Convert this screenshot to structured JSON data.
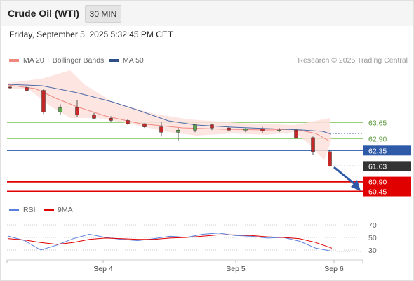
{
  "header": {
    "title": "Crude Oil (WTI)",
    "timeframe": "30 MIN",
    "datetime": "Friday, September 5, 2025 5:32:45 PM CET"
  },
  "legend": {
    "ma20_label": "MA 20 + Bollinger Bands",
    "ma50_label": "MA 50",
    "credit": "Research © 2025 Trading Central",
    "rsi_label": "RSI",
    "ma9_label": "9MA"
  },
  "colors": {
    "bollinger_fill": "#fde0dd",
    "ma20": "#f08880",
    "ma50": "#4a6aa8",
    "resistance": "#9bd07a",
    "pivot": "#2e5aa8",
    "support": "#e00000",
    "price_tag": "#333333",
    "rsi": "#5b7fe0",
    "rsi_ma": "#e00000"
  },
  "chart_data": [
    {
      "type": "candlestick",
      "title": "Crude Oil (WTI)",
      "x_ticks": [
        "Sep 4",
        "Sep 5",
        "Sep 6"
      ],
      "ylim": [
        60.0,
        64.3
      ],
      "levels": [
        {
          "label": "63.65",
          "value": 63.65,
          "kind": "resistance"
        },
        {
          "label": "62.90",
          "value": 62.9,
          "kind": "resistance"
        },
        {
          "label": "62.35",
          "value": 62.35,
          "kind": "pivot"
        },
        {
          "label": "61.63",
          "value": 61.63,
          "kind": "last"
        },
        {
          "label": "60.90",
          "value": 60.9,
          "kind": "support"
        },
        {
          "label": "60.45",
          "value": 60.45,
          "kind": "support"
        }
      ],
      "series": [
        {
          "name": "MA 20 + Bollinger Bands"
        },
        {
          "name": "MA 50"
        }
      ],
      "ohlc_sampled": [
        {
          "x": "Sep 3 20:00",
          "o": 65.3,
          "h": 65.35,
          "l": 65.2,
          "c": 65.28
        },
        {
          "x": "Sep 3 22:00",
          "o": 65.28,
          "h": 65.32,
          "l": 65.1,
          "c": 65.15
        },
        {
          "x": "Sep 4 00:00",
          "o": 65.15,
          "h": 65.2,
          "l": 64.05,
          "c": 64.15
        },
        {
          "x": "Sep 4 02:00",
          "o": 64.15,
          "h": 64.5,
          "l": 64.0,
          "c": 64.35
        },
        {
          "x": "Sep 4 04:00",
          "o": 64.35,
          "h": 64.7,
          "l": 63.9,
          "c": 64.0
        },
        {
          "x": "Sep 4 06:00",
          "o": 64.0,
          "h": 64.1,
          "l": 63.8,
          "c": 63.85
        },
        {
          "x": "Sep 4 08:00",
          "o": 63.85,
          "h": 63.95,
          "l": 63.7,
          "c": 63.75
        },
        {
          "x": "Sep 4 12:00",
          "o": 63.75,
          "h": 63.8,
          "l": 63.55,
          "c": 63.6
        },
        {
          "x": "Sep 4 16:00",
          "o": 63.6,
          "h": 63.62,
          "l": 63.4,
          "c": 63.45
        },
        {
          "x": "Sep 4 18:00",
          "o": 63.45,
          "h": 63.7,
          "l": 63.0,
          "c": 63.2
        },
        {
          "x": "Sep 4 20:00",
          "o": 63.2,
          "h": 63.4,
          "l": 62.8,
          "c": 63.3
        },
        {
          "x": "Sep 4 22:00",
          "o": 63.3,
          "h": 63.6,
          "l": 63.2,
          "c": 63.55
        },
        {
          "x": "Sep 5 02:00",
          "o": 63.55,
          "h": 63.6,
          "l": 63.3,
          "c": 63.4
        },
        {
          "x": "Sep 5 06:00",
          "o": 63.4,
          "h": 63.45,
          "l": 63.25,
          "c": 63.3
        },
        {
          "x": "Sep 5 10:00",
          "o": 63.3,
          "h": 63.4,
          "l": 63.2,
          "c": 63.35
        },
        {
          "x": "Sep 5 12:00",
          "o": 63.35,
          "h": 63.45,
          "l": 63.15,
          "c": 63.25
        },
        {
          "x": "Sep 5 14:00",
          "o": 63.25,
          "h": 63.4,
          "l": 63.2,
          "c": 63.3
        },
        {
          "x": "Sep 5 15:00",
          "o": 63.3,
          "h": 63.35,
          "l": 62.9,
          "c": 62.95
        },
        {
          "x": "Sep 5 16:00",
          "o": 62.95,
          "h": 63.0,
          "l": 62.15,
          "c": 62.3
        },
        {
          "x": "Sep 5 17:00",
          "o": 62.3,
          "h": 62.4,
          "l": 61.6,
          "c": 61.63
        }
      ]
    },
    {
      "type": "line",
      "title": "RSI",
      "x_ticks": [
        "Sep 4",
        "Sep 5",
        "Sep 6"
      ],
      "y_ticks": [
        70,
        50,
        30
      ],
      "ylim": [
        10,
        80
      ],
      "series": [
        {
          "name": "RSI",
          "values": [
            52,
            45,
            30,
            38,
            48,
            55,
            50,
            47,
            45,
            48,
            52,
            50,
            55,
            57,
            53,
            52,
            49,
            50,
            44,
            33,
            28
          ]
        },
        {
          "name": "9MA",
          "values": [
            48,
            46,
            42,
            39,
            42,
            47,
            49,
            48,
            47,
            47,
            49,
            50,
            52,
            54,
            54,
            53,
            51,
            50,
            48,
            42,
            33
          ]
        }
      ]
    }
  ]
}
